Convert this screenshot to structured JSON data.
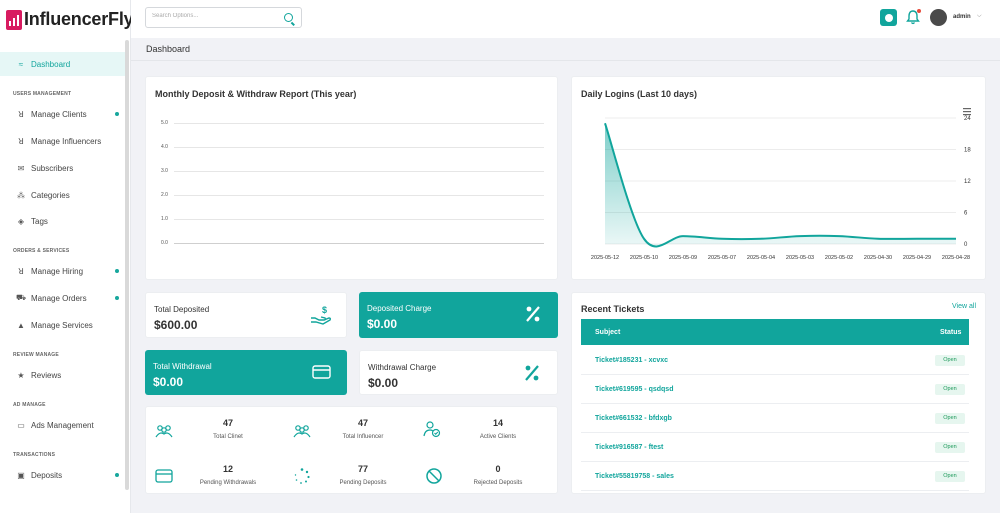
{
  "app": {
    "logo_text": "InfluencerFly"
  },
  "sidebar": {
    "dashboard": "Dashboard",
    "sections": {
      "users": "USERS MANAGEMENT",
      "orders": "ORDERS & SERVICES",
      "review": "REVIEW MANAGE",
      "ad": "AD MANAGE",
      "transactions": "TRANSACTIONS"
    },
    "items": {
      "manage_clients": "Manage Clients",
      "manage_influencers": "Manage Influencers",
      "subscribers": "Subscribers",
      "categories": "Categories",
      "tags": "Tags",
      "manage_hiring": "Manage Hiring",
      "manage_orders": "Manage Orders",
      "manage_services": "Manage Services",
      "reviews": "Reviews",
      "ads_management": "Ads Management",
      "deposits": "Deposits"
    }
  },
  "topbar": {
    "search_placeholder": "Search Options...",
    "user_name": "admin"
  },
  "page": {
    "title": "Dashboard"
  },
  "deposit_report": {
    "title": "Monthly Deposit & Withdraw Report (This year)",
    "y_ticks": [
      "5.0",
      "4.0",
      "3.0",
      "2.0",
      "1.0",
      "0.0"
    ]
  },
  "logins": {
    "title": "Daily Logins (Last 10 days)"
  },
  "chart_data": {
    "type": "area",
    "title": "Daily Logins (Last 10 days)",
    "x": [
      "2025-05-12",
      "2025-05-10",
      "2025-05-09",
      "2025-05-07",
      "2025-05-04",
      "2025-05-03",
      "2025-05-02",
      "2025-04-30",
      "2025-04-29",
      "2025-04-28"
    ],
    "y_ticks": [
      "24",
      "18",
      "12",
      "6",
      "0"
    ],
    "ylim": [
      0,
      24
    ],
    "series": [
      {
        "values": [
          23,
          1,
          1.5,
          1,
          1,
          1.5,
          1.5,
          1,
          1,
          1
        ]
      }
    ],
    "color": "#11a59c",
    "grid": true
  },
  "stats": {
    "total_deposited": {
      "label": "Total Deposited",
      "value": "$600.00"
    },
    "deposited_charge": {
      "label": "Deposited Charge",
      "value": "$0.00"
    },
    "total_withdrawal": {
      "label": "Total Withdrawal",
      "value": "$0.00"
    },
    "withdrawal_charge": {
      "label": "Withdrawal Charge",
      "value": "$0.00"
    }
  },
  "counts": [
    {
      "value": "47",
      "label": "Total Clinet"
    },
    {
      "value": "47",
      "label": "Total Influencer"
    },
    {
      "value": "14",
      "label": "Active Clients"
    },
    {
      "value": "12",
      "label": "Pending Withdrawals"
    },
    {
      "value": "77",
      "label": "Pending Deposits"
    },
    {
      "value": "0",
      "label": "Rejected Deposits"
    }
  ],
  "tickets": {
    "title": "Recent Tickets",
    "view_all": "View all",
    "col_subject": "Subject",
    "col_status": "Status",
    "rows": [
      {
        "subject": "Ticket#185231 - xcvxc",
        "status": "Open"
      },
      {
        "subject": "Ticket#619595 - qsdqsd",
        "status": "Open"
      },
      {
        "subject": "Ticket#661532 - bfdxgb",
        "status": "Open"
      },
      {
        "subject": "Ticket#916587 - ftest",
        "status": "Open"
      },
      {
        "subject": "Ticket#55819758 - sales",
        "status": "Open"
      }
    ]
  },
  "colors": {
    "accent": "#11a59c",
    "brand": "#d81b60"
  }
}
